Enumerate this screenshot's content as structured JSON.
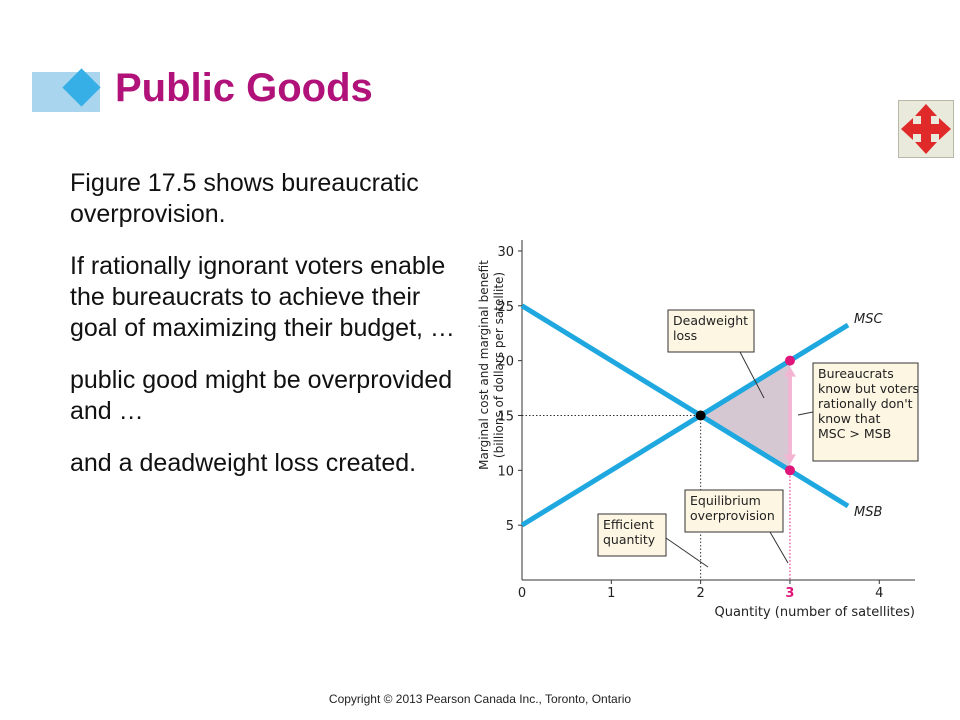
{
  "slide": {
    "title": "Public Goods",
    "bullets": [
      "Figure 17.5 shows bureaucratic overprovision.",
      "If rationally ignorant voters enable the bureaucrats to achieve their goal of maximizing their budget, …",
      "public good might be overprovided and …",
      "and a deadweight loss created."
    ],
    "footer": "Copyright © 2013 Pearson Canada Inc., Toronto, Ontario",
    "nav_icon": "four-way-arrows-icon",
    "colors": {
      "title": "#b0127a",
      "accent_blue": "#36aee6",
      "curve": "#1fa8e0",
      "marker": "#e0157a",
      "deadweight_fill": "#d6c8d3"
    }
  },
  "chart_data": {
    "type": "line",
    "title": "",
    "xlabel": "Quantity (number of satellites)",
    "ylabel": [
      "Marginal cost and marginal benefit",
      "(billions of dollars per satellite)"
    ],
    "xlim": [
      0,
      4.4
    ],
    "ylim": [
      0,
      31
    ],
    "x_ticks": [
      0,
      1,
      2,
      3,
      4
    ],
    "y_ticks": [
      5,
      10,
      15,
      20,
      25,
      30
    ],
    "x_tick_labels": [
      "0",
      "1",
      "2",
      "3",
      "4"
    ],
    "y_tick_labels": [
      "5",
      "10",
      "15",
      "20",
      "25",
      "30"
    ],
    "highlight_tick_color": "#e0157a",
    "series": [
      {
        "name": "MSC",
        "points": [
          [
            0,
            5
          ],
          [
            3.65,
            23.25
          ]
        ]
      },
      {
        "name": "MSB",
        "points": [
          [
            0,
            25
          ],
          [
            3.65,
            6.75
          ]
        ]
      }
    ],
    "equilibrium_point": [
      2,
      15
    ],
    "overprovision_points": [
      [
        3,
        20
      ],
      [
        3,
        10
      ]
    ],
    "deadweight_loss_polygon": [
      [
        2,
        15
      ],
      [
        3,
        20
      ],
      [
        3,
        10
      ]
    ],
    "annotations": [
      {
        "lines": [
          "Deadweight",
          "loss"
        ]
      },
      {
        "lines": [
          "Bureaucrats",
          "know but voters",
          "rationally don't",
          "know that",
          "MSC > MSB"
        ]
      },
      {
        "lines": [
          "Equilibrium",
          "overprovision"
        ]
      },
      {
        "lines": [
          "Efficient",
          "quantity"
        ]
      }
    ]
  }
}
